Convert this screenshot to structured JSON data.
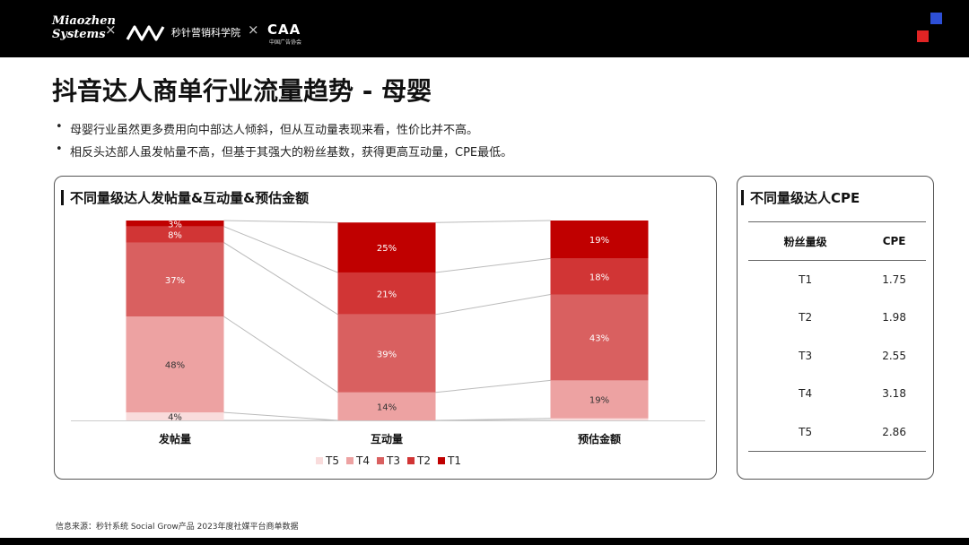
{
  "header": {
    "logo1_line1": "Miaozhen",
    "logo1_line2": "Systems",
    "logo2_text": "秒针营销科学院",
    "logo3_text": "CAA",
    "logo3_sub": "中国广告协会",
    "separator": "×"
  },
  "page_title": "抖音达人商单行业流量趋势 - 母婴",
  "bullets": [
    "母婴行业虽然更多费用向中部达人倾斜，但从互动量表现来看，性价比并不高。",
    "相反头达部人虽发帖量不高，但基于其强大的粉丝基数，获得更高互动量，CPE最低。"
  ],
  "chart_panel_title": "不同量级达人发帖量&互动量&预估金额",
  "chart_data": {
    "type": "bar",
    "stacked": true,
    "normalized_percent": true,
    "categories": [
      "发帖量",
      "互动量",
      "预估金额"
    ],
    "series": [
      {
        "name": "T5",
        "color": "#f9dcdc",
        "values": [
          4,
          0,
          1
        ]
      },
      {
        "name": "T4",
        "color": "#eda2a2",
        "values": [
          48,
          14,
          19
        ]
      },
      {
        "name": "T3",
        "color": "#d96060",
        "values": [
          37,
          39,
          43
        ]
      },
      {
        "name": "T2",
        "color": "#d13535",
        "values": [
          8,
          21,
          18
        ]
      },
      {
        "name": "T1",
        "color": "#c00000",
        "values": [
          3,
          25,
          19
        ]
      }
    ],
    "ylim": [
      0,
      100
    ],
    "legend_position": "bottom-center",
    "connector_lines": true
  },
  "cpe_panel": {
    "title": "不同量级达人CPE",
    "headers": [
      "粉丝量级",
      "CPE"
    ],
    "rows": [
      [
        "T1",
        "1.75"
      ],
      [
        "T2",
        "1.98"
      ],
      [
        "T3",
        "2.55"
      ],
      [
        "T4",
        "3.18"
      ],
      [
        "T5",
        "2.86"
      ]
    ]
  },
  "source_note": "信息来源：秒针系统  Social Grow产品  2023年度社媒平台商单数据",
  "colors": {
    "accent_red": "#c00000",
    "brand_blue": "#2d4fd6",
    "brand_red": "#e02424"
  }
}
